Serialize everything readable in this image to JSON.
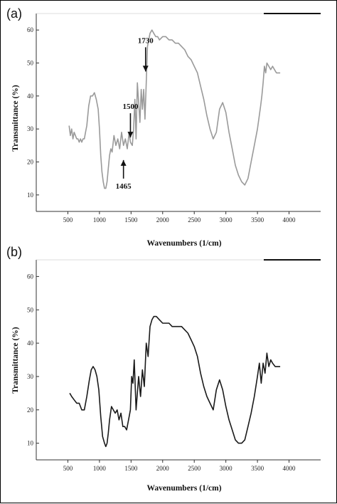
{
  "figure": {
    "panel_a_label": "(a)",
    "panel_b_label": "(b)"
  },
  "chart_data": [
    {
      "type": "line",
      "panel": "(a)",
      "title": "",
      "xlabel": "Wavenumbers (1/cm)",
      "ylabel": "Transmittance (%)",
      "xlim": [
        0,
        4500
      ],
      "ylim": [
        5,
        65
      ],
      "x_ticks": [
        500,
        1000,
        1500,
        2000,
        2500,
        3000,
        3500,
        4000
      ],
      "y_ticks": [
        10,
        20,
        30,
        40,
        50,
        60
      ],
      "line_color": "#9a9a9a",
      "grid": false,
      "annotations": [
        {
          "text": "1730",
          "x": 1730,
          "y": 47
        },
        {
          "text": "1500",
          "x": 1490,
          "y": 27
        },
        {
          "text": "1465",
          "x": 1380,
          "y": 21
        }
      ],
      "series": [
        {
          "x": [
            520,
            540,
            560,
            580,
            600,
            620,
            640,
            660,
            680,
            700,
            720,
            740,
            760,
            780,
            800,
            830,
            860,
            890,
            920,
            950,
            980,
            1000,
            1020,
            1040,
            1060,
            1080,
            1100,
            1120,
            1140,
            1160,
            1180,
            1200,
            1230,
            1260,
            1290,
            1320,
            1350,
            1380,
            1410,
            1440,
            1470,
            1490,
            1520,
            1540,
            1560,
            1580,
            1600,
            1620,
            1640,
            1660,
            1680,
            1700,
            1720,
            1740,
            1760,
            1780,
            1800,
            1830,
            1860,
            1890,
            1920,
            1950,
            2000,
            2050,
            2100,
            2150,
            2200,
            2250,
            2300,
            2350,
            2400,
            2450,
            2500,
            2550,
            2600,
            2650,
            2700,
            2750,
            2800,
            2850,
            2900,
            2950,
            3000,
            3050,
            3100,
            3150,
            3200,
            3250,
            3300,
            3350,
            3400,
            3450,
            3500,
            3550,
            3570,
            3590,
            3610,
            3630,
            3650,
            3680,
            3710,
            3740,
            3770,
            3800,
            3830,
            3860
          ],
          "values": [
            31,
            28,
            30,
            27,
            29,
            28,
            27,
            27,
            26,
            27,
            26,
            27,
            27,
            29,
            31,
            37,
            40,
            40,
            41,
            39,
            36,
            30,
            22,
            17,
            14,
            12,
            12,
            14,
            18,
            22,
            24,
            23,
            28,
            25,
            27,
            24,
            29,
            25,
            27,
            24,
            29,
            26,
            25,
            30,
            39,
            27,
            44,
            38,
            32,
            42,
            36,
            42,
            33,
            44,
            55,
            57,
            59,
            60,
            59,
            58,
            58,
            57,
            58,
            58,
            57,
            57,
            56,
            56,
            55,
            54,
            52,
            51,
            49,
            47,
            43,
            39,
            34,
            30,
            27,
            29,
            36,
            38,
            35,
            29,
            24,
            19,
            16,
            14,
            13,
            15,
            20,
            25,
            30,
            37,
            40,
            44,
            49,
            47,
            50,
            49,
            48,
            49,
            48,
            47,
            47,
            47
          ]
        }
      ]
    },
    {
      "type": "line",
      "panel": "(b)",
      "title": "",
      "xlabel": "Wavenumbers (1/cm)",
      "ylabel": "Transmittance (%)",
      "xlim": [
        0,
        4500
      ],
      "ylim": [
        5,
        65
      ],
      "x_ticks": [
        500,
        1000,
        1500,
        2000,
        2500,
        3000,
        3500,
        4000
      ],
      "y_ticks": [
        10,
        20,
        30,
        40,
        50,
        60
      ],
      "line_color": "#1a1a1a",
      "grid": false,
      "series": [
        {
          "x": [
            530,
            560,
            600,
            640,
            680,
            720,
            760,
            800,
            840,
            870,
            900,
            930,
            960,
            990,
            1020,
            1050,
            1080,
            1100,
            1120,
            1140,
            1160,
            1190,
            1220,
            1250,
            1280,
            1310,
            1340,
            1370,
            1400,
            1430,
            1460,
            1490,
            1510,
            1530,
            1550,
            1580,
            1600,
            1620,
            1650,
            1680,
            1710,
            1740,
            1770,
            1800,
            1830,
            1860,
            1900,
            1950,
            2000,
            2050,
            2100,
            2150,
            2200,
            2250,
            2300,
            2350,
            2400,
            2450,
            2500,
            2550,
            2600,
            2650,
            2700,
            2750,
            2800,
            2850,
            2900,
            2950,
            3000,
            3050,
            3100,
            3150,
            3200,
            3250,
            3300,
            3350,
            3400,
            3450,
            3500,
            3530,
            3560,
            3590,
            3620,
            3650,
            3680,
            3710,
            3740,
            3780,
            3820,
            3860
          ],
          "values": [
            25,
            24,
            23,
            22,
            22,
            20,
            20,
            24,
            29,
            32,
            33,
            32,
            30,
            26,
            18,
            12,
            10,
            9,
            10,
            13,
            17,
            21,
            20,
            19,
            20,
            17,
            19,
            15,
            15,
            14,
            17,
            20,
            30,
            28,
            35,
            20,
            25,
            30,
            24,
            32,
            27,
            40,
            36,
            45,
            47,
            48,
            48,
            47,
            46,
            46,
            46,
            45,
            45,
            45,
            45,
            44,
            43,
            41,
            39,
            36,
            31,
            27,
            24,
            22,
            20,
            26,
            29,
            26,
            21,
            17,
            14,
            11,
            10,
            10,
            11,
            15,
            19,
            24,
            30,
            34,
            28,
            34,
            31,
            37,
            33,
            35,
            34,
            33,
            33,
            33
          ]
        }
      ]
    }
  ]
}
